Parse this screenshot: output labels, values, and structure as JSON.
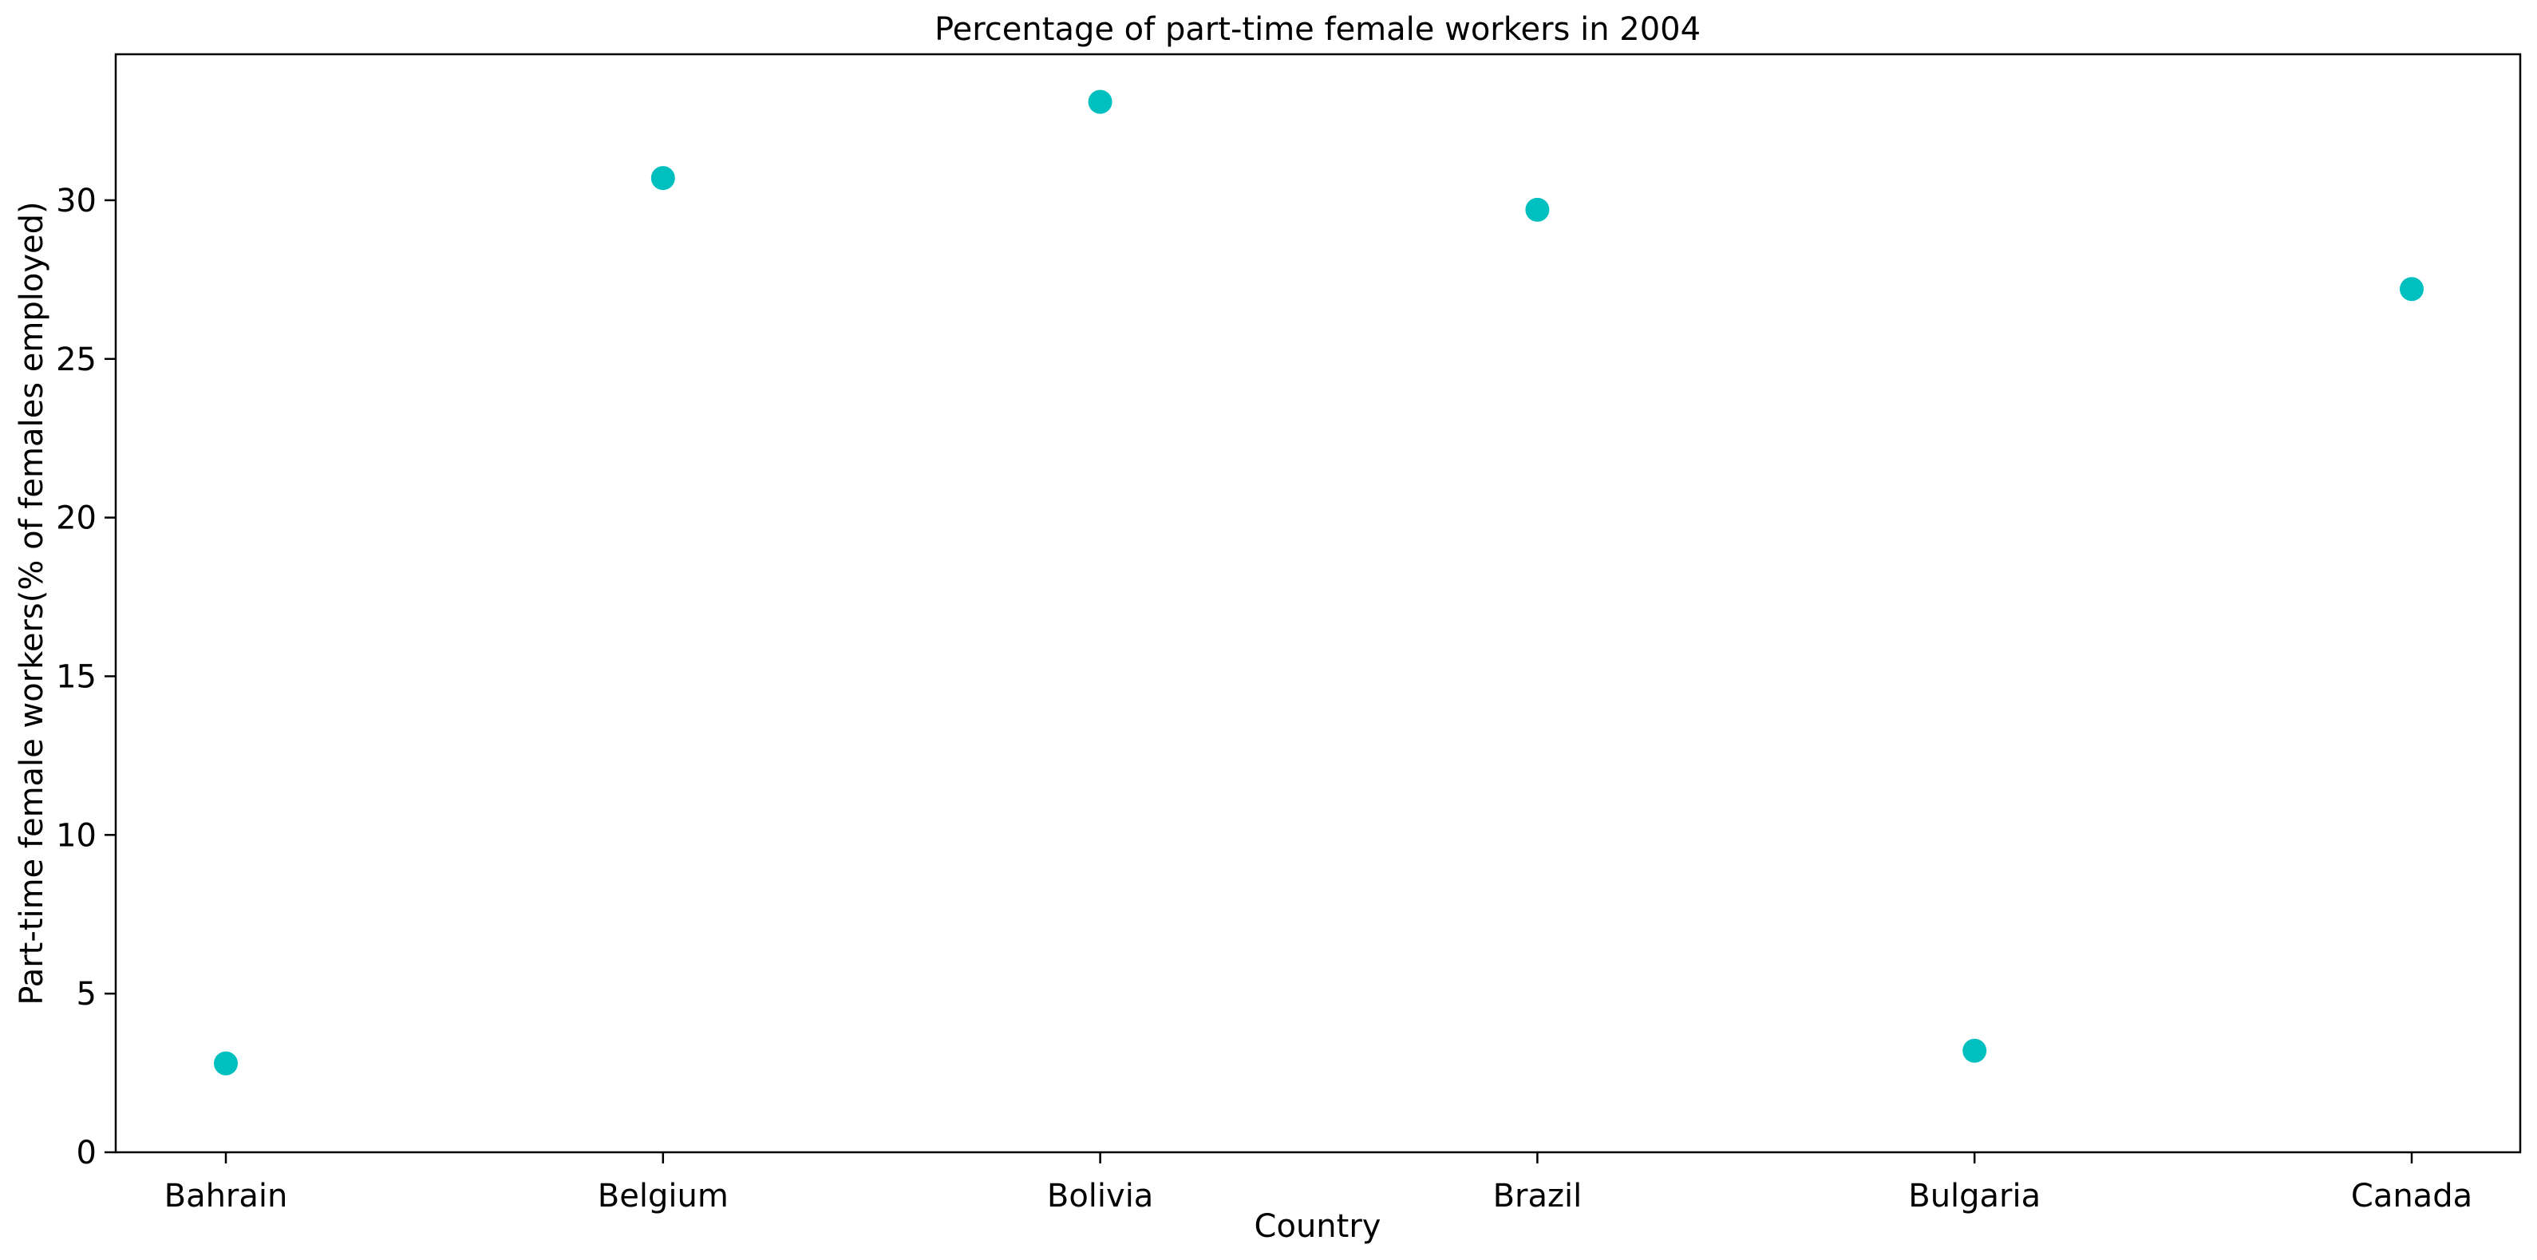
{
  "chart_data": {
    "type": "scatter",
    "title": "Percentage of part-time female workers in 2004",
    "xlabel": "Country",
    "ylabel": "Part-time female workers(% of females employed)",
    "categories": [
      "Bahrain",
      "Belgium",
      "Bolivia",
      "Brazil",
      "Bulgaria",
      "Canada"
    ],
    "values": [
      2.8,
      30.7,
      33.1,
      29.7,
      3.2,
      27.2
    ],
    "ylim": [
      0,
      34.6
    ],
    "yticks": [
      0,
      5,
      10,
      15,
      20,
      25,
      30
    ],
    "marker_color": "#00bfbf",
    "grid": false,
    "legend": "none"
  }
}
